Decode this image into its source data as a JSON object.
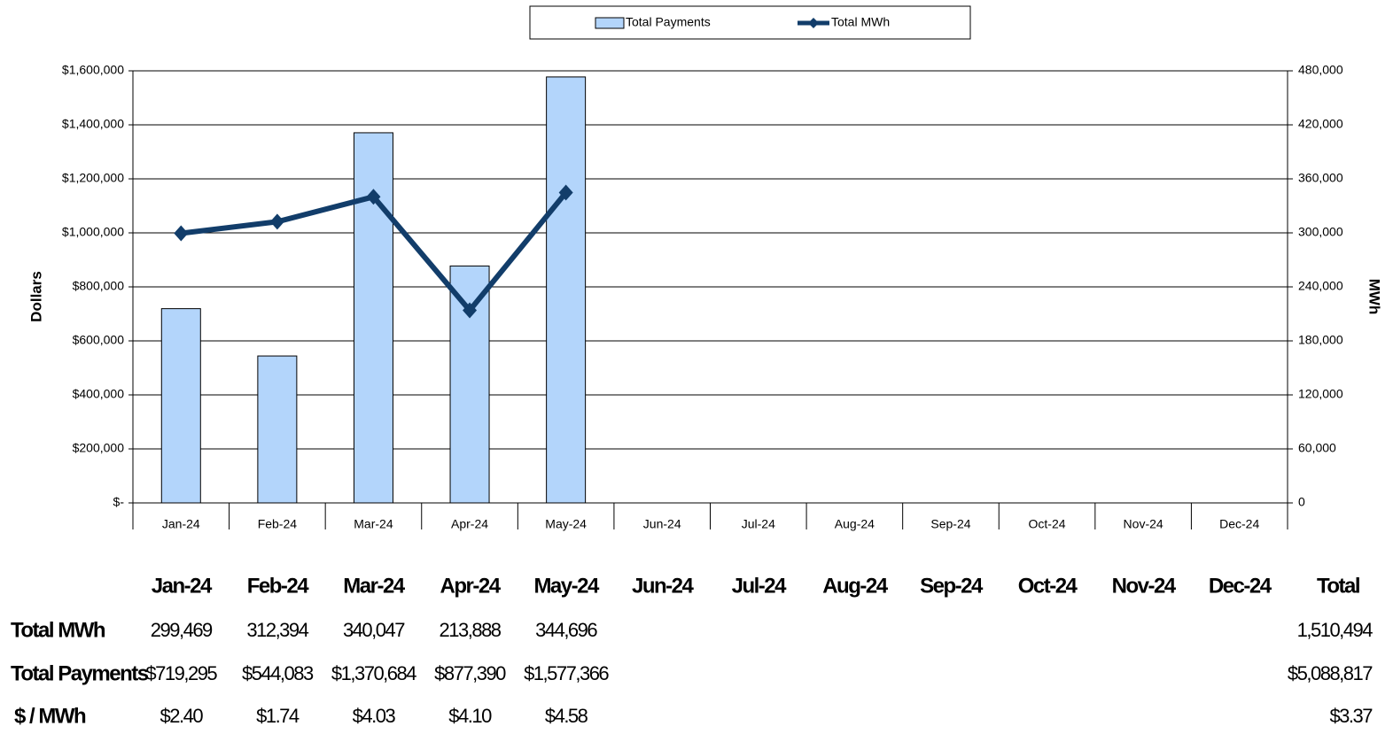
{
  "chart_data": {
    "type": "bar",
    "categories": [
      "Jan-24",
      "Feb-24",
      "Mar-24",
      "Apr-24",
      "May-24",
      "Jun-24",
      "Jul-24",
      "Aug-24",
      "Sep-24",
      "Oct-24",
      "Nov-24",
      "Dec-24"
    ],
    "series": [
      {
        "name": "Total Payments",
        "type": "bar",
        "color": "#b3d5fb",
        "values": [
          719295,
          544083,
          1370684,
          877390,
          1577366,
          null,
          null,
          null,
          null,
          null,
          null,
          null
        ]
      },
      {
        "name": "Total MWh",
        "type": "line",
        "axis": "y2",
        "color": "#123d6a",
        "values": [
          299469,
          312394,
          340047,
          213888,
          344696,
          null,
          null,
          null,
          null,
          null,
          null,
          null
        ]
      }
    ],
    "ylabel": "Dollars",
    "y2label": "MWh",
    "ylim": [
      0,
      1600000
    ],
    "yticks": [
      {
        "value": 0,
        "label": "$-"
      },
      {
        "value": 200000,
        "label": "$200,000"
      },
      {
        "value": 400000,
        "label": "$400,000"
      },
      {
        "value": 600000,
        "label": "$600,000"
      },
      {
        "value": 800000,
        "label": "$800,000"
      },
      {
        "value": 1000000,
        "label": "$1,000,000"
      },
      {
        "value": 1200000,
        "label": "$1,200,000"
      },
      {
        "value": 1400000,
        "label": "$1,400,000"
      },
      {
        "value": 1600000,
        "label": "$1,600,000"
      }
    ],
    "y2lim": [
      0,
      480000
    ],
    "y2ticks": [
      0,
      {
        "value": 60000,
        "label": "60,000"
      },
      {
        "value": 120000,
        "label": "120,000"
      },
      {
        "value": 180000,
        "label": "180,000"
      },
      {
        "value": 240000,
        "label": "240,000"
      },
      {
        "value": 300000,
        "label": "300,000"
      },
      {
        "value": 360000,
        "label": "360,000"
      },
      {
        "value": 420000,
        "label": "420,000"
      },
      {
        "value": 480000,
        "label": "480,000"
      }
    ],
    "grid": true,
    "legend": "top"
  },
  "table": {
    "columns": [
      "Jan-24",
      "Feb-24",
      "Mar-24",
      "Apr-24",
      "May-24",
      "Jun-24",
      "Jul-24",
      "Aug-24",
      "Sep-24",
      "Oct-24",
      "Nov-24",
      "Dec-24"
    ],
    "total_header": "Total",
    "rows": [
      {
        "label": "Total MWh",
        "values": [
          "299,469",
          "312,394",
          "340,047",
          "213,888",
          "344,696"
        ],
        "total": "1,510,494"
      },
      {
        "label": "Total Payments",
        "values": [
          "$719,295",
          "$544,083",
          "$1,370,684",
          "$877,390",
          "$1,577,366"
        ],
        "total": "$5,088,817"
      },
      {
        "label": "$ / MWh",
        "values": [
          "$2.40",
          "$1.74",
          "$4.03",
          "$4.10",
          "$4.58"
        ],
        "total": "$3.37"
      }
    ]
  }
}
